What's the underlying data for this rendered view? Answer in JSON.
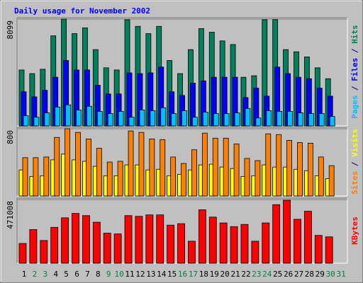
{
  "chart_data": [
    {
      "type": "bar",
      "title": "Daily usage for November 2002",
      "categories": [
        "1",
        "2",
        "3",
        "4",
        "5",
        "6",
        "7",
        "8",
        "9",
        "10",
        "11",
        "12",
        "13",
        "14",
        "15",
        "16",
        "17",
        "18",
        "19",
        "20",
        "21",
        "22",
        "23",
        "24",
        "25",
        "26",
        "27",
        "28",
        "29",
        "30",
        "31"
      ],
      "category_colors": [
        "#000000",
        "#008040",
        "#008040",
        "#000000",
        "#000000",
        "#000000",
        "#000000",
        "#000000",
        "#008040",
        "#008040",
        "#000000",
        "#000000",
        "#000000",
        "#000000",
        "#000000",
        "#008040",
        "#008040",
        "#000000",
        "#000000",
        "#000000",
        "#000000",
        "#000000",
        "#008040",
        "#008040",
        "#000000",
        "#000000",
        "#000000",
        "#000000",
        "#000000",
        "#008040",
        "#008040"
      ],
      "legend_separator": " / ",
      "ylim": [
        0,
        8099
      ],
      "yticks": [
        8099
      ],
      "series": [
        {
          "name": "Hits",
          "color": "#00805c",
          "values": [
            4243,
            3967,
            4298,
            6832,
            8099,
            6998,
            7439,
            5786,
            4408,
            4243,
            8050,
            7549,
            6998,
            7549,
            4959,
            3967,
            5786,
            7383,
            7108,
            6447,
            6171,
            3692,
            3802,
            8050,
            8060,
            5786,
            5620,
            5234,
            4408,
            3582,
            null
          ]
        },
        {
          "name": "Files",
          "color": "#0000ff",
          "values": [
            2590,
            2204,
            2700,
            3692,
            4959,
            4243,
            4243,
            3086,
            2424,
            2424,
            4022,
            3967,
            4022,
            4463,
            2590,
            2314,
            3251,
            3416,
            3692,
            3692,
            3692,
            2149,
            2865,
            2259,
            4463,
            3967,
            3692,
            3582,
            2865,
            2259,
            null
          ]
        },
        {
          "name": "Pages",
          "color": "#00c0ff",
          "values": [
            771,
            661,
            992,
            1433,
            1598,
            1212,
            1488,
            1102,
            937,
            1102,
            661,
            1212,
            1157,
            1378,
            937,
            1157,
            661,
            1047,
            937,
            937,
            992,
            1323,
            606,
            1157,
            1102,
            1102,
            992,
            937,
            937,
            717,
            null
          ]
        }
      ]
    },
    {
      "type": "bar",
      "legend_separator": " / ",
      "ylim": [
        0,
        800
      ],
      "yticks": [
        800
      ],
      "series": [
        {
          "name": "Visits",
          "color": "#ffff00",
          "values": [
            310,
            232,
            241,
            430,
            499,
            430,
            413,
            353,
            241,
            241,
            370,
            370,
            310,
            318,
            241,
            258,
            310,
            370,
            378,
            344,
            327,
            232,
            241,
            370,
            344,
            344,
            318,
            301,
            241,
            206,
            null
          ]
        },
        {
          "name": "Sites",
          "color": "#ff8000",
          "values": [
            456,
            456,
            464,
            697,
            800,
            757,
            679,
            568,
            404,
            413,
            774,
            757,
            679,
            671,
            464,
            387,
            550,
            748,
            688,
            688,
            619,
            447,
            421,
            740,
            731,
            662,
            636,
            628,
            464,
            361,
            null
          ]
        }
      ]
    },
    {
      "type": "bar",
      "ylim": [
        0,
        471008
      ],
      "yticks": [
        471008
      ],
      "series": [
        {
          "name": "KBytes",
          "color": "#ff0000",
          "values": [
            146178,
            249044,
            167834,
            265286,
            335668,
            368152,
            351910,
            303184,
            221974,
            216560,
            351910,
            346496,
            357324,
            357324,
            281528,
            292356,
            162420,
            395222,
            341082,
            297770,
            270700,
            286942,
            162420,
            297770,
            433120,
            465604,
            324840,
            384394,
            205732,
            194904,
            null
          ]
        }
      ]
    }
  ]
}
